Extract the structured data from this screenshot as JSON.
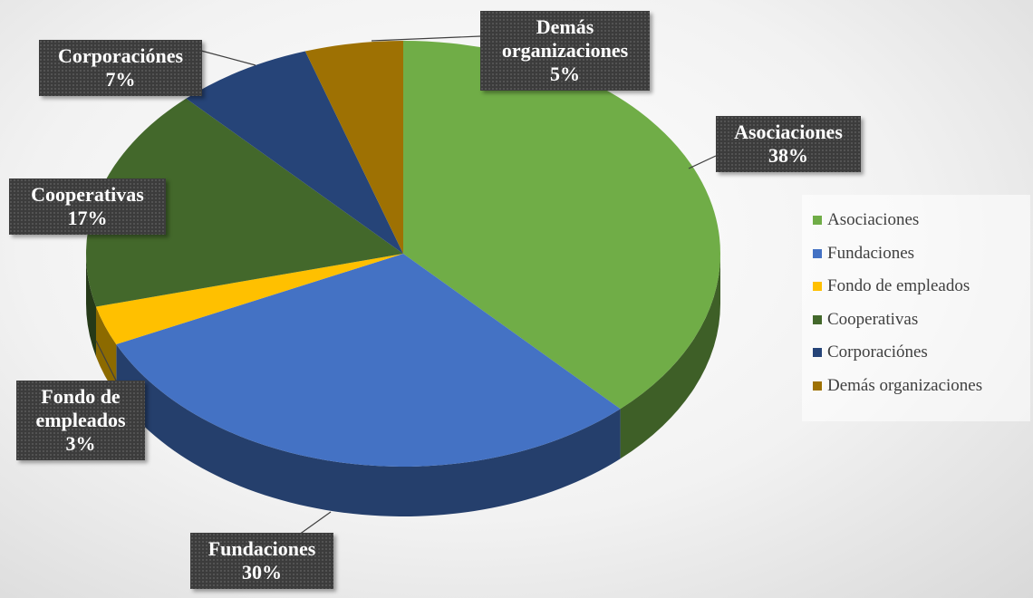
{
  "chart_data": {
    "type": "pie",
    "categories": [
      "Asociaciones",
      "Fundaciones",
      "Fondo de empleados",
      "Cooperativas",
      "Corporaciónes",
      "Demás organizaciones"
    ],
    "values": [
      38,
      30,
      3,
      17,
      7,
      5
    ],
    "value_labels": [
      "38%",
      "30%",
      "3%",
      "17%",
      "7%",
      "5%"
    ],
    "colors": [
      "#70ad47",
      "#4472c4",
      "#ffc000",
      "#43682b",
      "#264478",
      "#9e7103"
    ],
    "legend": "right"
  }
}
